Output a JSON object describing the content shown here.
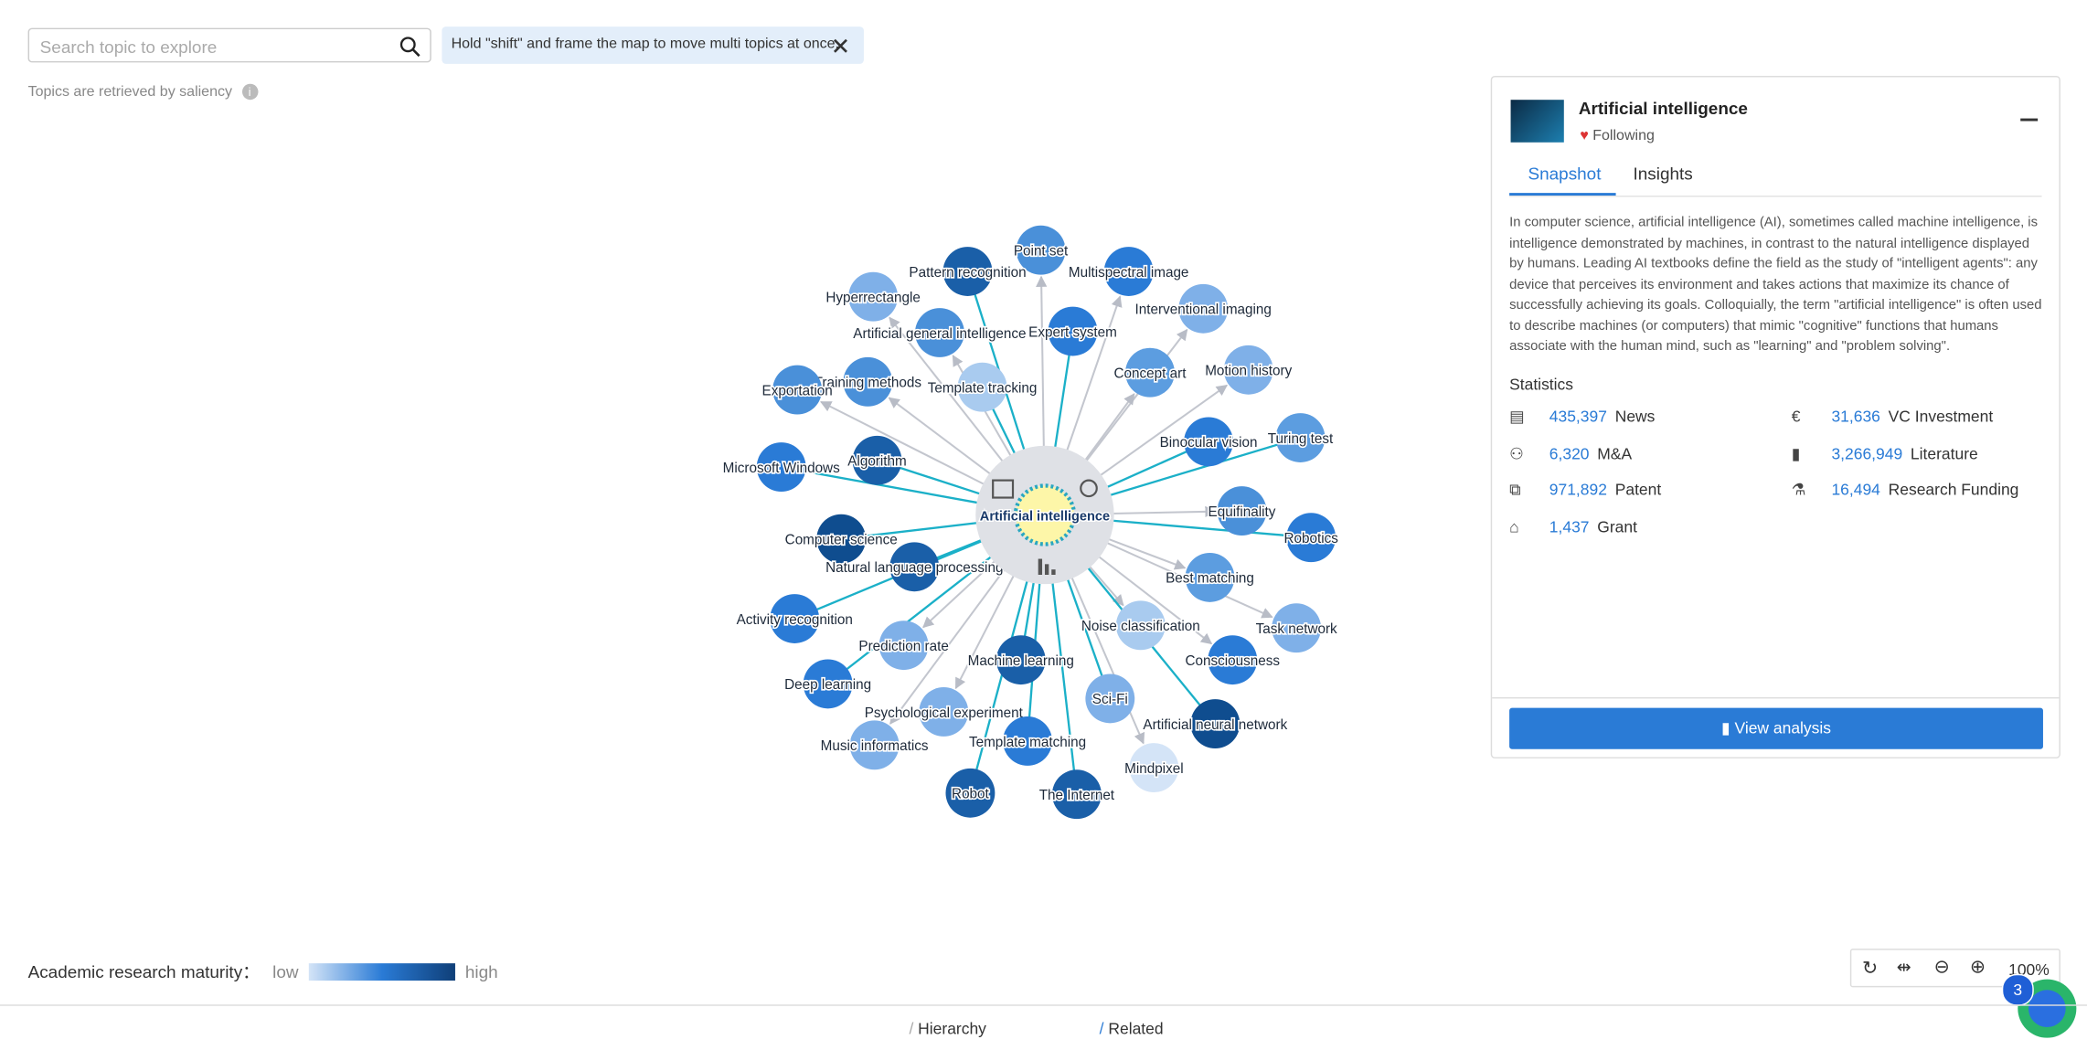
{
  "search": {
    "placeholder": "Search topic to explore"
  },
  "hint": "Hold \"shift\" and frame the map to move multi topics at once.",
  "saliency_note": "Topics are retrieved by saliency",
  "graph": {
    "center": "Artificial intelligence",
    "nodes": [
      {
        "label": "Point set",
        "color": "#4a90d9"
      },
      {
        "label": "Pattern recognition",
        "color": "#1a5fa8"
      },
      {
        "label": "Multispectral image",
        "color": "#2a7bd6"
      },
      {
        "label": "Hyperrectangle",
        "color": "#7fb0e8"
      },
      {
        "label": "Interventional imaging",
        "color": "#7fb0e8"
      },
      {
        "label": "Artificial general intelligence",
        "color": "#4a90d9"
      },
      {
        "label": "Expert system",
        "color": "#2a7bd6"
      },
      {
        "label": "Concept art",
        "color": "#5c9de0"
      },
      {
        "label": "Motion history",
        "color": "#7fb0e8"
      },
      {
        "label": "Training methods",
        "color": "#4a90d9"
      },
      {
        "label": "Template tracking",
        "color": "#a9cbef"
      },
      {
        "label": "Exportation",
        "color": "#4a90d9"
      },
      {
        "label": "Binocular vision",
        "color": "#2a7bd6"
      },
      {
        "label": "Turing test",
        "color": "#5c9de0"
      },
      {
        "label": "Algorithm",
        "color": "#1a5fa8"
      },
      {
        "label": "Microsoft Windows",
        "color": "#2a7bd6"
      },
      {
        "label": "Equifinality",
        "color": "#4a90d9"
      },
      {
        "label": "Robotics",
        "color": "#2a7bd6"
      },
      {
        "label": "Computer science",
        "color": "#0f4d8f"
      },
      {
        "label": "Natural language processing",
        "color": "#1a5fa8"
      },
      {
        "label": "Best matching",
        "color": "#5c9de0"
      },
      {
        "label": "Activity recognition",
        "color": "#2a7bd6"
      },
      {
        "label": "Noise classification",
        "color": "#a9cbef"
      },
      {
        "label": "Task network",
        "color": "#7fb0e8"
      },
      {
        "label": "Prediction rate",
        "color": "#7fb0e8"
      },
      {
        "label": "Machine learning",
        "color": "#1a5fa8"
      },
      {
        "label": "Consciousness",
        "color": "#2a7bd6"
      },
      {
        "label": "Deep learning",
        "color": "#2a7bd6"
      },
      {
        "label": "Sci-Fi",
        "color": "#7fb0e8"
      },
      {
        "label": "Psychological experiment",
        "color": "#7fb0e8"
      },
      {
        "label": "Artificial neural network",
        "color": "#0f4d8f"
      },
      {
        "label": "Template matching",
        "color": "#2a7bd6"
      },
      {
        "label": "Music informatics",
        "color": "#7fb0e8"
      },
      {
        "label": "Mindpixel",
        "color": "#d4e4f7"
      },
      {
        "label": "Robot",
        "color": "#1a5fa8"
      },
      {
        "label": "The Internet",
        "color": "#1a5fa8"
      }
    ]
  },
  "panel": {
    "title": "Artificial intelligence",
    "status": "Following",
    "tabs": [
      "Snapshot",
      "Insights"
    ],
    "description": "In computer science, artificial intelligence (AI), sometimes called machine intelligence, is intelligence demonstrated by machines, in contrast to the natural intelligence displayed by humans. Leading AI textbooks define the field as the study of \"intelligent agents\": any device that perceives its environment and takes actions that maximize its chance of successfully achieving its goals. Colloquially, the term \"artificial intelligence\" is often used to describe machines (or computers) that mimic \"cognitive\" functions that humans associate with the human mind, such as \"learning\" and \"problem solving\".",
    "statistics_title": "Statistics",
    "stats": [
      {
        "value": "435,397",
        "label": "News"
      },
      {
        "value": "31,636",
        "label": "VC Investment"
      },
      {
        "value": "6,320",
        "label": "M&A"
      },
      {
        "value": "3,266,949",
        "label": "Literature"
      },
      {
        "value": "971,892",
        "label": "Patent"
      },
      {
        "value": "16,494",
        "label": "Research Funding"
      },
      {
        "value": "1,437",
        "label": "Grant"
      }
    ],
    "button": "View analysis"
  },
  "legend": {
    "title": "Academic research maturity：",
    "low": "low",
    "high": "high"
  },
  "zoom": "100%",
  "badge": "3",
  "footer_tabs": [
    "Hierarchy",
    "Related"
  ]
}
